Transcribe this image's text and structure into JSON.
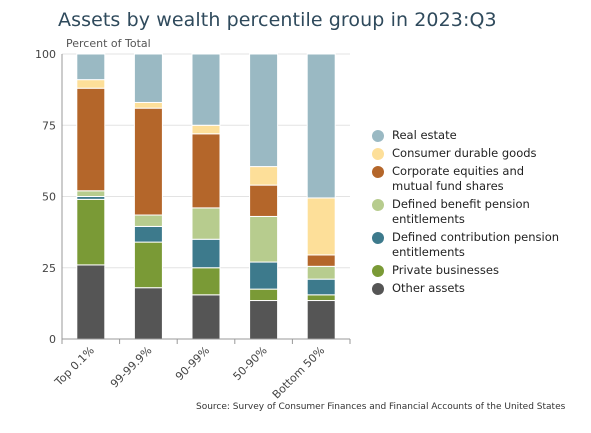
{
  "chart_data": {
    "type": "bar",
    "stacked": true,
    "title": "Assets by wealth percentile group in 2023:Q3",
    "ylabel": "Percent of Total",
    "xlabel": "",
    "ylim": [
      0,
      100
    ],
    "yticks": [
      0,
      25,
      50,
      75,
      100
    ],
    "grid": true,
    "legend_position": "right",
    "categories": [
      "Top 0.1%",
      "99-99.9%",
      "90-99%",
      "50-90%",
      "Bottom 50%"
    ],
    "series": [
      {
        "name": "Other assets",
        "color": "#555555",
        "values": [
          26,
          18,
          15.5,
          13.5,
          13.5
        ]
      },
      {
        "name": "Private businesses",
        "color": "#7a9a36",
        "values": [
          23,
          16,
          9.5,
          4,
          2
        ]
      },
      {
        "name": "Defined contribution pension entitlements",
        "color": "#3d7a8c",
        "values": [
          1,
          5.5,
          10,
          9.5,
          5.5
        ]
      },
      {
        "name": "Defined benefit pension entitlements",
        "color": "#b7cc8e",
        "values": [
          2,
          4,
          11,
          16,
          4.5
        ]
      },
      {
        "name": "Corporate equities and mutual fund shares",
        "color": "#b4662a",
        "values": [
          36,
          37.5,
          26,
          11,
          4
        ]
      },
      {
        "name": "Consumer durable goods",
        "color": "#fddf99",
        "values": [
          3,
          2,
          3,
          6.5,
          20
        ]
      },
      {
        "name": "Real estate",
        "color": "#9ab9c3",
        "values": [
          9,
          17,
          25,
          39.5,
          50.5
        ]
      }
    ]
  },
  "source": "Source: Survey of Consumer Finances and Financial Accounts of the United States"
}
